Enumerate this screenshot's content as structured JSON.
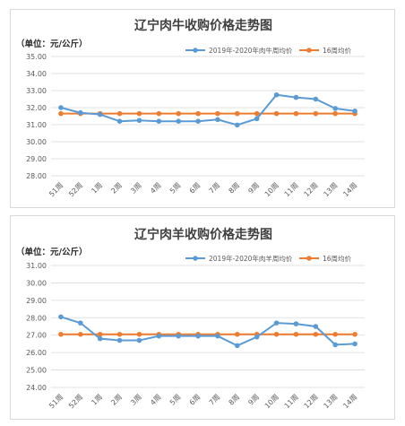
{
  "chart_data": [
    {
      "type": "line",
      "title": "辽宁肉牛收购价格走势图",
      "unit_label": "（单位：元/公斤）",
      "categories": [
        "51周",
        "52周",
        "1周",
        "2周",
        "3周",
        "4周",
        "5周",
        "6周",
        "7周",
        "8周",
        "9周",
        "10周",
        "11周",
        "12周",
        "13周",
        "14周"
      ],
      "ylim": [
        28.0,
        35.0
      ],
      "yticks": [
        "35.00",
        "34.00",
        "33.00",
        "32.00",
        "31.00",
        "30.00",
        "29.00",
        "28.00"
      ],
      "grid": true,
      "legend_position": "top-right",
      "series": [
        {
          "name": "2019年-2020年肉牛周均价",
          "color": "#5b9bd5",
          "values": [
            32.0,
            31.7,
            31.6,
            31.2,
            31.25,
            31.2,
            31.2,
            31.2,
            31.3,
            30.98,
            31.35,
            32.75,
            32.6,
            32.5,
            31.95,
            31.8
          ]
        },
        {
          "name": "16周均价",
          "color": "#ed7d31",
          "values": [
            31.65,
            31.65,
            31.65,
            31.65,
            31.65,
            31.65,
            31.65,
            31.65,
            31.65,
            31.65,
            31.65,
            31.65,
            31.65,
            31.65,
            31.65,
            31.65
          ]
        }
      ]
    },
    {
      "type": "line",
      "title": "辽宁肉羊收购价格走势图",
      "unit_label": "（单位：元/公斤）",
      "categories": [
        "51周",
        "52周",
        "1周",
        "2周",
        "3周",
        "4周",
        "5周",
        "6周",
        "7周",
        "8周",
        "9周",
        "10周",
        "11周",
        "12周",
        "13周",
        "14周"
      ],
      "ylim": [
        24.0,
        31.0
      ],
      "yticks": [
        "31.00",
        "30.00",
        "29.00",
        "28.00",
        "27.00",
        "26.00",
        "25.00",
        "24.00"
      ],
      "grid": true,
      "legend_position": "top-right",
      "series": [
        {
          "name": "2019年-2020年肉羊周均价",
          "color": "#5b9bd5",
          "values": [
            28.05,
            27.7,
            26.8,
            26.7,
            26.7,
            26.95,
            26.95,
            26.95,
            26.95,
            26.4,
            26.9,
            27.7,
            27.65,
            27.5,
            26.45,
            26.5
          ]
        },
        {
          "name": "16周均价",
          "color": "#ed7d31",
          "values": [
            27.05,
            27.05,
            27.05,
            27.05,
            27.05,
            27.05,
            27.05,
            27.05,
            27.05,
            27.05,
            27.05,
            27.05,
            27.05,
            27.05,
            27.05,
            27.05
          ]
        }
      ]
    }
  ]
}
